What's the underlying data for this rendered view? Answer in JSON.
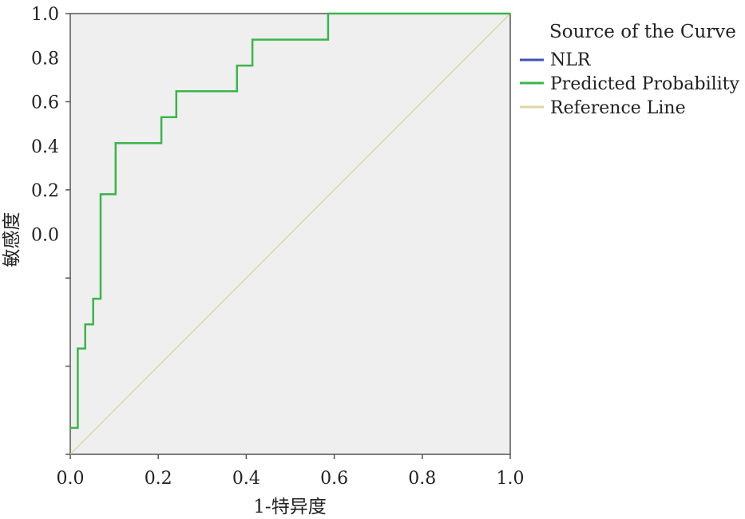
{
  "chart_data": {
    "type": "line",
    "title": "",
    "xlabel": "1-特异度",
    "ylabel": "敏感度",
    "xlim": [
      0,
      1
    ],
    "ylim": [
      0,
      1
    ],
    "x_ticks": [
      "0.0",
      "0.2",
      "0.4",
      "0.6",
      "0.8",
      "1.0"
    ],
    "y_tick_labels": [
      "1.0",
      "0.8",
      "0.6",
      "0.4",
      "0.2",
      "0.0"
    ],
    "grid": false,
    "legend_position": "right",
    "legend": {
      "title": "Source of the Curve",
      "entries": [
        {
          "label": "NLR",
          "color": "#3f51b5"
        },
        {
          "label": "Predicted Probability",
          "color": "#3cb44b"
        },
        {
          "label": "Reference Line",
          "color": "#ddd6a8"
        }
      ]
    },
    "series": [
      {
        "name": "Predicted Probability",
        "color": "#3cb44b",
        "points": [
          [
            0.0,
            0.06
          ],
          [
            0.017,
            0.06
          ],
          [
            0.017,
            0.24
          ],
          [
            0.034,
            0.24
          ],
          [
            0.034,
            0.295
          ],
          [
            0.052,
            0.295
          ],
          [
            0.052,
            0.353
          ],
          [
            0.069,
            0.353
          ],
          [
            0.069,
            0.59
          ],
          [
            0.103,
            0.59
          ],
          [
            0.103,
            0.706
          ],
          [
            0.207,
            0.706
          ],
          [
            0.207,
            0.765
          ],
          [
            0.241,
            0.765
          ],
          [
            0.241,
            0.824
          ],
          [
            0.379,
            0.824
          ],
          [
            0.379,
            0.882
          ],
          [
            0.414,
            0.882
          ],
          [
            0.414,
            0.941
          ],
          [
            0.586,
            0.941
          ],
          [
            0.586,
            1.0
          ],
          [
            1.0,
            1.0
          ]
        ]
      },
      {
        "name": "Reference Line",
        "color": "#ddd6a8",
        "points": [
          [
            0,
            0
          ],
          [
            1,
            1
          ]
        ]
      }
    ]
  }
}
